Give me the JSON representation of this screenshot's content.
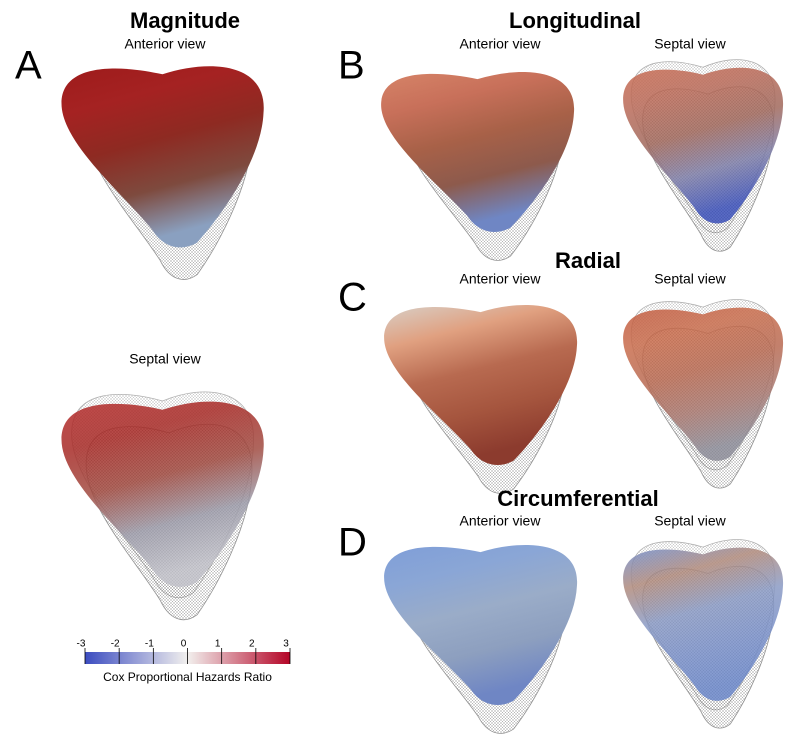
{
  "panels": [
    {
      "letter": "A",
      "title": "Magnitude",
      "views": [
        "Anterior view",
        "Septal view"
      ]
    },
    {
      "letter": "B",
      "title": "Longitudinal",
      "views": [
        "Anterior view",
        "Septal view"
      ]
    },
    {
      "letter": "C",
      "title": "Radial",
      "views": [
        "Anterior view",
        "Septal view"
      ]
    },
    {
      "letter": "D",
      "title": "Circumferential",
      "views": [
        "Anterior view",
        "Septal view"
      ]
    }
  ],
  "colorbar": {
    "ticks": [
      -3,
      -2,
      -1,
      0,
      1,
      2,
      3
    ],
    "label": "Cox Proportional Hazards Ratio"
  }
}
